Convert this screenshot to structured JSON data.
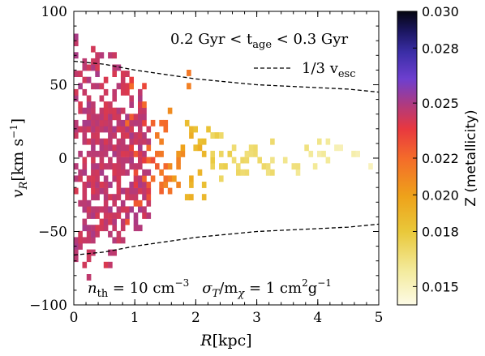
{
  "chart_data": {
    "type": "heatmap",
    "xlabel_main": "R",
    "xlabel_unit": "[kpc]",
    "ylabel_main": "v",
    "ylabel_sub": "R",
    "ylabel_unit": "[km s",
    "ylabel_exp": "−1",
    "ylabel_close": "]",
    "colorbar_label": "Z (metallicity)",
    "xlim": [
      0,
      5
    ],
    "ylim": [
      -100,
      100
    ],
    "x_ticks": [
      "0",
      "1",
      "2",
      "3",
      "4",
      "5"
    ],
    "y_ticks": [
      "100",
      "50",
      "0",
      "−50",
      "−100"
    ],
    "colorbar_range": [
      0.014,
      0.03
    ],
    "colorbar_ticks": [
      "0.030",
      "0.028",
      "0.025",
      "0.022",
      "0.020",
      "0.018",
      "0.015"
    ],
    "colorbar_tick_values": [
      0.03,
      0.028,
      0.025,
      0.022,
      0.02,
      0.018,
      0.015
    ],
    "annotation_age": {
      "left": "0.2 Gyr < t",
      "sub": "age",
      "right": " < 0.3 Gyr"
    },
    "legend": {
      "placement": "upper-right",
      "label_pre": "1/3 v",
      "label_sub": "esc",
      "style": "dashed"
    },
    "annotation_params": {
      "n": "n",
      "n_sub": "th",
      "n_val": " = 10 cm",
      "n_exp": "−3",
      "sigma": "σ",
      "sigma_sub": "T",
      "mid": "/m",
      "chi": "χ",
      "rhs": " = 1 cm",
      "rhs_exp1": "2",
      "g": "g",
      "rhs_exp2": "−1"
    },
    "escape_curve": {
      "R": [
        0,
        0.5,
        1,
        1.5,
        2,
        2.5,
        3,
        3.5,
        4,
        4.5,
        5
      ],
      "v": [
        66,
        64,
        60,
        57,
        54,
        52,
        50,
        49,
        48,
        47,
        45
      ]
    },
    "grid": false,
    "colormap": "CMRmap_r"
  }
}
